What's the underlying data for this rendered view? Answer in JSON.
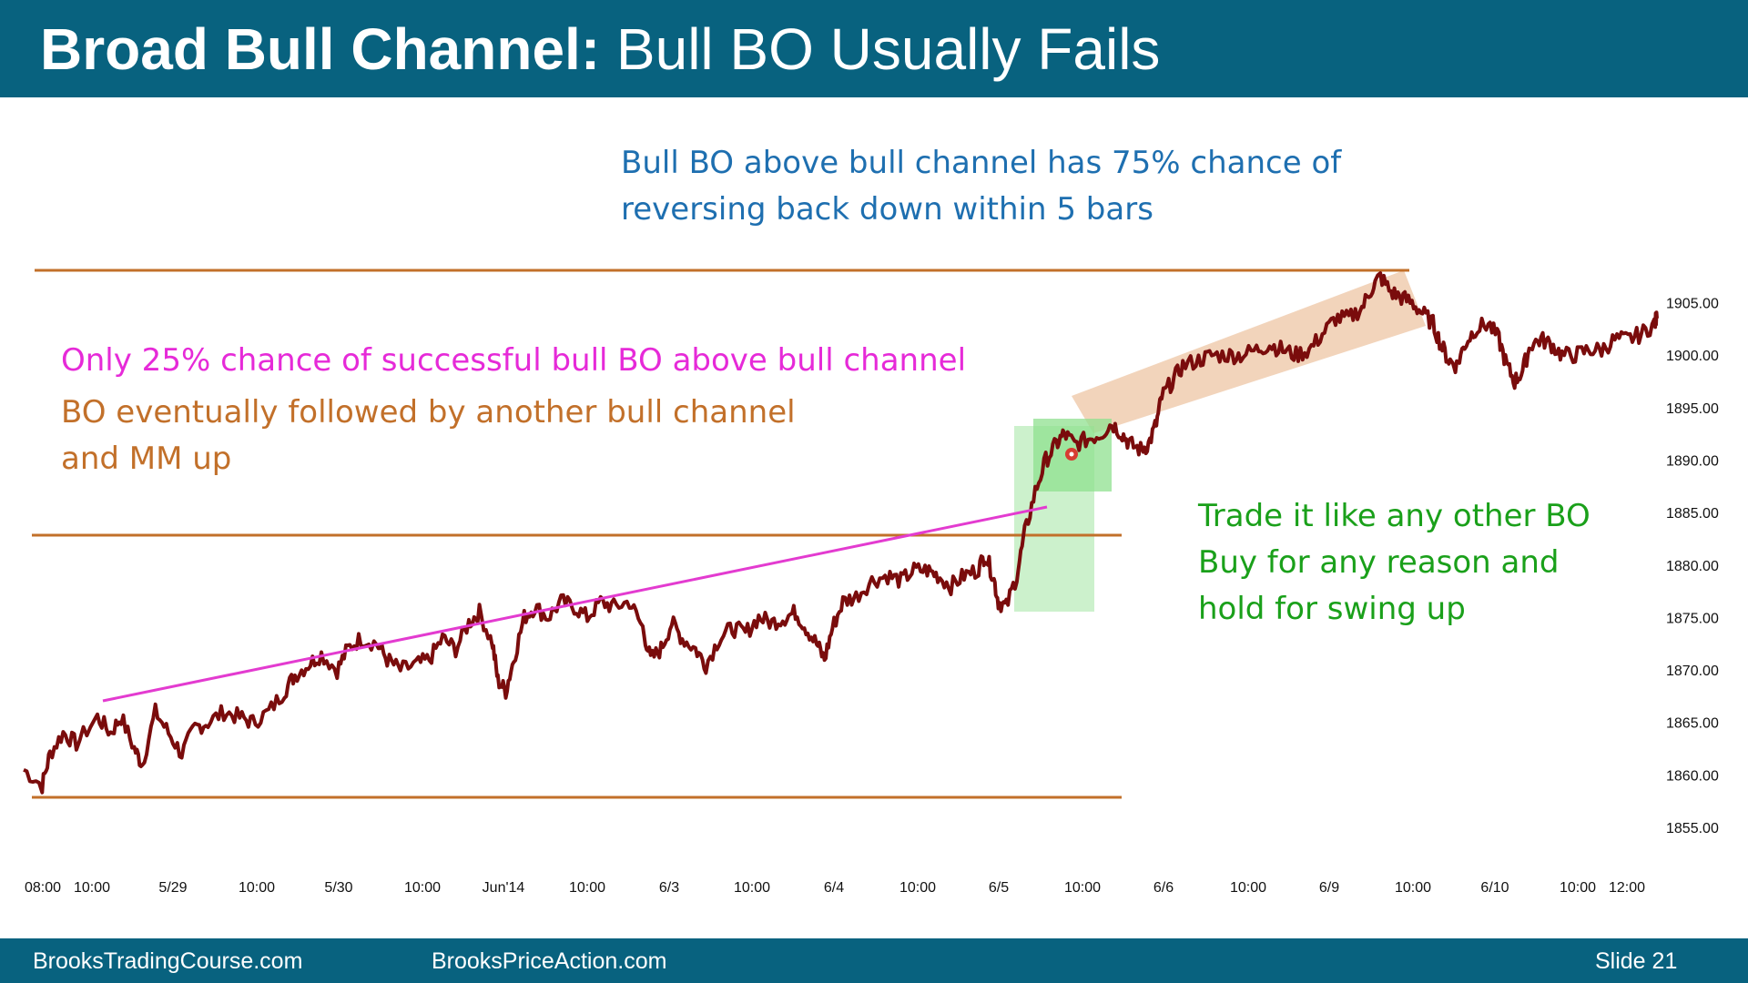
{
  "slide": {
    "title_bold": "Broad Bull Channel:",
    "title_rest": " Bull BO Usually Fails"
  },
  "annotations": {
    "blue": [
      "Bull BO above bull channel has 75% chance of",
      "reversing back down within 5 bars"
    ],
    "pink": [
      "Only 25% chance of successful bull BO above bull channel"
    ],
    "orange": [
      "BO eventually followed by another bull channel",
      "and MM up"
    ],
    "green": [
      "Trade it like any other BO",
      "Buy for any reason and",
      "hold for swing up"
    ]
  },
  "footer": {
    "left": "BrooksTradingCourse.com",
    "center": "BrooksPriceAction.com",
    "slide_label": "Slide  21"
  },
  "colors": {
    "header": "#08627f",
    "bars": "#7a0c0c",
    "range_lines": "#c2702a",
    "trendline": "#e33bd0",
    "breakout_zone": "#8fe08f",
    "channel_fill": "#e6a977",
    "marker": "#e01e1e"
  },
  "chart_data": {
    "type": "line",
    "title": "",
    "xlabel": "",
    "ylabel": "",
    "ylim": [
      1852,
      1910
    ],
    "x_tick_labels": [
      "08:00",
      "10:00",
      "5/29",
      "10:00",
      "5/30",
      "10:00",
      "Jun'14",
      "10:00",
      "6/3",
      "10:00",
      "6/4",
      "10:00",
      "6/5",
      "10:00",
      "6/6",
      "10:00",
      "6/9",
      "10:00",
      "6/10",
      "10:00",
      "12:00"
    ],
    "y_ticks": [
      1855,
      1860,
      1865,
      1870,
      1875,
      1880,
      1885,
      1890,
      1895,
      1900,
      1905
    ],
    "y_tick_labels": [
      "1855.00",
      "1860.00",
      "1865.00",
      "1870.00",
      "1875.00",
      "1880.00",
      "1885.00",
      "1890.00",
      "1895.00",
      "1900.00",
      "1905.00"
    ],
    "series": [
      {
        "points": [
          [
            0.0,
            1860.5
          ],
          [
            0.7,
            1859.0
          ],
          [
            1.0,
            1862.0
          ],
          [
            1.5,
            1864.0
          ],
          [
            2.0,
            1863.0
          ],
          [
            2.8,
            1865.5
          ],
          [
            3.3,
            1864.0
          ],
          [
            3.7,
            1865.5
          ],
          [
            4.2,
            1862.5
          ],
          [
            4.5,
            1861.0
          ],
          [
            5.0,
            1866.0
          ],
          [
            5.5,
            1864.0
          ],
          [
            6.0,
            1862.0
          ],
          [
            6.5,
            1864.5
          ],
          [
            7.0,
            1865.0
          ],
          [
            7.6,
            1866.0
          ],
          [
            8.2,
            1865.5
          ],
          [
            8.7,
            1865.0
          ],
          [
            9.3,
            1866.0
          ],
          [
            9.9,
            1868.0
          ],
          [
            10.3,
            1869.5
          ],
          [
            10.8,
            1870.5
          ],
          [
            11.3,
            1871.5
          ],
          [
            11.9,
            1870.0
          ],
          [
            12.3,
            1872.0
          ],
          [
            12.8,
            1873.0
          ],
          [
            13.4,
            1872.5
          ],
          [
            13.8,
            1871.0
          ],
          [
            14.3,
            1870.0
          ],
          [
            14.9,
            1870.5
          ],
          [
            15.4,
            1871.0
          ],
          [
            15.9,
            1873.0
          ],
          [
            16.4,
            1872.0
          ],
          [
            16.9,
            1874.5
          ],
          [
            17.3,
            1875.5
          ],
          [
            17.8,
            1872.5
          ],
          [
            18.0,
            1869.0
          ],
          [
            18.3,
            1868.0
          ],
          [
            18.6,
            1871.0
          ],
          [
            19.0,
            1875.0
          ],
          [
            19.4,
            1876.0
          ],
          [
            19.9,
            1875.0
          ],
          [
            20.4,
            1876.5
          ],
          [
            20.9,
            1876.0
          ],
          [
            21.4,
            1875.0
          ],
          [
            21.9,
            1876.5
          ],
          [
            22.4,
            1876.0
          ],
          [
            23.0,
            1876.5
          ],
          [
            23.5,
            1874.0
          ],
          [
            23.8,
            1871.0
          ],
          [
            24.2,
            1872.0
          ],
          [
            24.6,
            1874.5
          ],
          [
            25.0,
            1873.0
          ],
          [
            25.5,
            1872.0
          ],
          [
            25.9,
            1870.5
          ],
          [
            26.4,
            1873.0
          ],
          [
            26.9,
            1874.0
          ],
          [
            27.4,
            1873.5
          ],
          [
            27.9,
            1875.0
          ],
          [
            28.4,
            1874.5
          ],
          [
            28.9,
            1875.0
          ],
          [
            29.3,
            1875.5
          ],
          [
            29.7,
            1874.0
          ],
          [
            30.1,
            1872.5
          ],
          [
            30.4,
            1871.0
          ],
          [
            30.7,
            1874.0
          ],
          [
            31.1,
            1876.5
          ],
          [
            31.6,
            1877.0
          ],
          [
            32.2,
            1878.5
          ],
          [
            32.8,
            1879.0
          ],
          [
            33.3,
            1878.5
          ],
          [
            33.8,
            1879.5
          ],
          [
            34.3,
            1879.5
          ],
          [
            34.7,
            1879.0
          ],
          [
            35.2,
            1878.0
          ],
          [
            35.7,
            1879.0
          ],
          [
            36.2,
            1879.5
          ],
          [
            36.5,
            1881.0
          ],
          [
            36.8,
            1879.0
          ],
          [
            37.0,
            1876.5
          ],
          [
            37.3,
            1876.0
          ],
          [
            37.7,
            1879.0
          ],
          [
            38.0,
            1883.0
          ],
          [
            38.4,
            1887.0
          ],
          [
            38.8,
            1890.0
          ],
          [
            39.2,
            1891.5
          ],
          [
            39.5,
            1892.5
          ],
          [
            39.9,
            1891.5
          ],
          [
            40.4,
            1892.0
          ],
          [
            40.9,
            1892.5
          ],
          [
            41.3,
            1893.5
          ],
          [
            41.7,
            1892.5
          ],
          [
            42.0,
            1891.5
          ],
          [
            42.4,
            1891.0
          ],
          [
            42.7,
            1891.5
          ],
          [
            43.0,
            1893.5
          ],
          [
            43.2,
            1896.0
          ],
          [
            43.6,
            1897.5
          ],
          [
            44.0,
            1899.0
          ],
          [
            44.6,
            1899.5
          ],
          [
            45.1,
            1900.0
          ],
          [
            45.7,
            1900.0
          ],
          [
            46.2,
            1900.0
          ],
          [
            46.8,
            1900.5
          ],
          [
            47.3,
            1901.0
          ],
          [
            47.8,
            1900.5
          ],
          [
            48.3,
            1900.0
          ],
          [
            48.8,
            1900.5
          ],
          [
            49.3,
            1902.0
          ],
          [
            49.8,
            1903.5
          ],
          [
            50.3,
            1903.5
          ],
          [
            50.8,
            1904.5
          ],
          [
            51.2,
            1906.5
          ],
          [
            51.5,
            1907.5
          ],
          [
            51.9,
            1906.0
          ],
          [
            52.3,
            1905.5
          ],
          [
            52.7,
            1905.0
          ],
          [
            53.1,
            1904.0
          ],
          [
            53.5,
            1903.0
          ],
          [
            53.8,
            1901.0
          ],
          [
            54.1,
            1899.5
          ],
          [
            54.4,
            1899.0
          ],
          [
            54.7,
            1901.0
          ],
          [
            55.1,
            1902.5
          ],
          [
            55.6,
            1903.0
          ],
          [
            56.0,
            1901.5
          ],
          [
            56.3,
            1899.0
          ],
          [
            56.6,
            1897.5
          ],
          [
            56.9,
            1898.5
          ],
          [
            57.2,
            1901.0
          ],
          [
            57.6,
            1901.5
          ],
          [
            58.0,
            1901.0
          ],
          [
            58.4,
            1900.0
          ],
          [
            58.9,
            1900.0
          ],
          [
            59.4,
            1900.5
          ],
          [
            59.9,
            1900.5
          ],
          [
            60.4,
            1901.5
          ],
          [
            60.9,
            1901.5
          ],
          [
            61.4,
            1902.0
          ],
          [
            61.9,
            1903.0
          ],
          [
            62.0,
            1903.5
          ]
        ]
      }
    ],
    "breakout_bar_index": 38.5
  }
}
